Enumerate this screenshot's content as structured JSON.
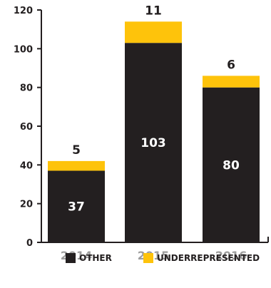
{
  "chart_data": {
    "type": "bar",
    "stacked": true,
    "categories": [
      "2014",
      "2015",
      "2016"
    ],
    "series": [
      {
        "name": "OTHER",
        "values": [
          37,
          103,
          80
        ],
        "color": "#231f20"
      },
      {
        "name": "UNDERREPRESENTED",
        "values": [
          5,
          11,
          6
        ],
        "color": "#fec30b"
      }
    ],
    "ylim": [
      0,
      120
    ],
    "yticks": [
      "0",
      "20",
      "40",
      "60",
      "80",
      "100",
      "120"
    ],
    "grid": false,
    "legend": "bottom",
    "title": "",
    "xlabel": "",
    "ylabel": ""
  },
  "colors": {
    "axis": "#231f20",
    "category_text": "#9d9d9d",
    "inner_label": "#ffffff"
  }
}
